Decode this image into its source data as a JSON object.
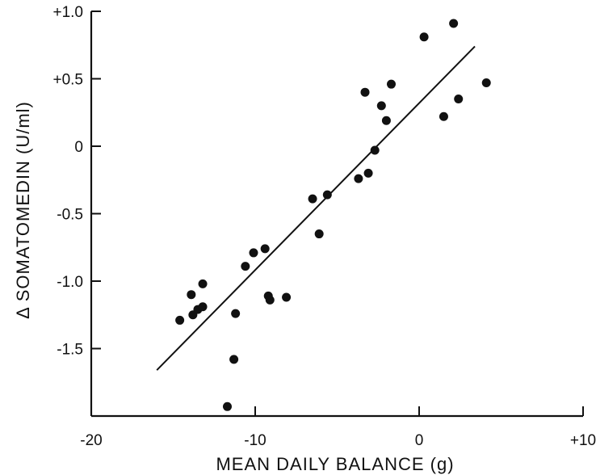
{
  "chart_data": {
    "type": "scatter",
    "title": "",
    "xlabel": "MEAN DAILY BALANCE (g)",
    "ylabel": "Δ SOMATOMEDIN (U/ml)",
    "xlim": [
      -20,
      10
    ],
    "ylim": [
      -2.0,
      1.0
    ],
    "x_ticks": [
      -20,
      -10,
      0,
      10
    ],
    "x_tick_labels": [
      "-20",
      "-10",
      "0",
      "+10"
    ],
    "y_ticks": [
      1.0,
      0.5,
      0,
      -0.5,
      -1.0,
      -1.5
    ],
    "y_tick_labels": [
      "+1.0",
      "+0.5",
      "0",
      "-0.5",
      "-1.0",
      "-1.5"
    ],
    "grid": false,
    "legend": "none",
    "points": [
      {
        "x": -14.6,
        "y": -1.29
      },
      {
        "x": -13.9,
        "y": -1.1
      },
      {
        "x": -13.8,
        "y": -1.25
      },
      {
        "x": -13.5,
        "y": -1.21
      },
      {
        "x": -13.2,
        "y": -1.02
      },
      {
        "x": -13.2,
        "y": -1.19
      },
      {
        "x": -11.7,
        "y": -1.93
      },
      {
        "x": -11.3,
        "y": -1.58
      },
      {
        "x": -11.2,
        "y": -1.24
      },
      {
        "x": -10.6,
        "y": -0.89
      },
      {
        "x": -10.1,
        "y": -0.79
      },
      {
        "x": -9.4,
        "y": -0.76
      },
      {
        "x": -9.2,
        "y": -1.11
      },
      {
        "x": -9.1,
        "y": -1.14
      },
      {
        "x": -8.1,
        "y": -1.12
      },
      {
        "x": -6.5,
        "y": -0.39
      },
      {
        "x": -6.1,
        "y": -0.65
      },
      {
        "x": -5.6,
        "y": -0.36
      },
      {
        "x": -3.7,
        "y": -0.24
      },
      {
        "x": -3.3,
        "y": 0.4
      },
      {
        "x": -3.1,
        "y": -0.2
      },
      {
        "x": -2.7,
        "y": -0.03
      },
      {
        "x": -2.3,
        "y": 0.3
      },
      {
        "x": -2.0,
        "y": 0.19
      },
      {
        "x": -1.7,
        "y": 0.46
      },
      {
        "x": 0.3,
        "y": 0.81
      },
      {
        "x": 1.5,
        "y": 0.22
      },
      {
        "x": 2.1,
        "y": 0.91
      },
      {
        "x": 2.4,
        "y": 0.35
      },
      {
        "x": 4.1,
        "y": 0.47
      }
    ],
    "regression_line": {
      "x": [
        -16.0,
        3.4
      ],
      "y": [
        -1.66,
        0.74
      ]
    }
  }
}
